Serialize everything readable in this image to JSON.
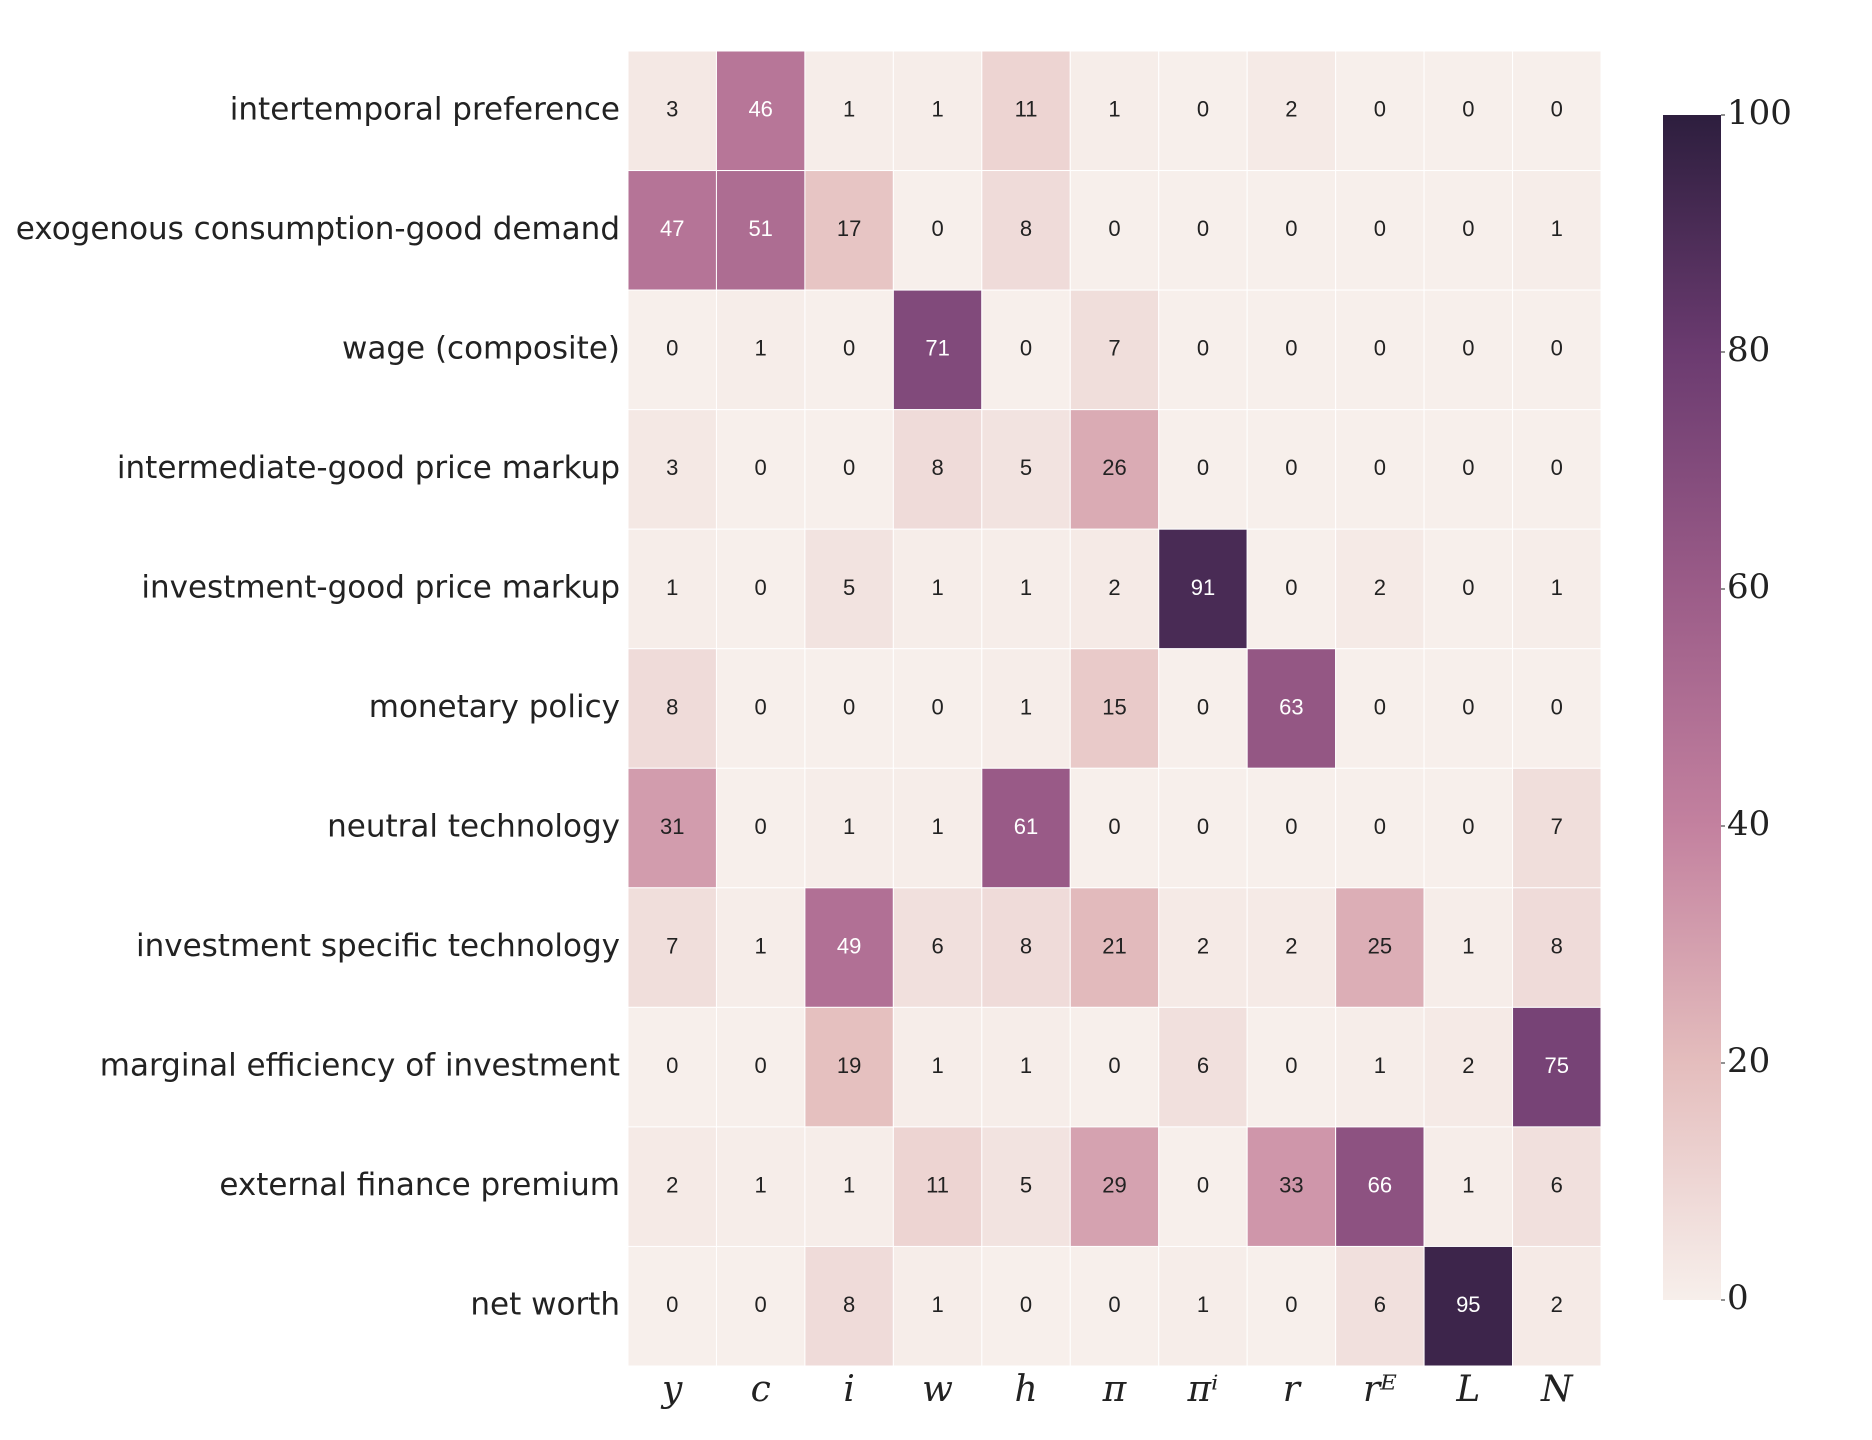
{
  "chart_data": {
    "type": "heatmap",
    "categories": [
      "y",
      "c",
      "i",
      "w",
      "h",
      "π",
      "πⁱ",
      "r",
      "rᴱ",
      "L",
      "N"
    ],
    "rows": [
      "intertemporal preference",
      "exogenous consumption-good demand",
      "wage (composite)",
      "intermediate-good price markup",
      "investment-good price markup",
      "monetary policy",
      "neutral technology",
      "investment specific technology",
      "marginal efficiency of investment",
      "external finance premium",
      "net worth"
    ],
    "values": [
      [
        3,
        46,
        1,
        1,
        11,
        1,
        0,
        2,
        0,
        0,
        0
      ],
      [
        47,
        51,
        17,
        0,
        8,
        0,
        0,
        0,
        0,
        0,
        1
      ],
      [
        0,
        1,
        0,
        71,
        0,
        7,
        0,
        0,
        0,
        0,
        0
      ],
      [
        3,
        0,
        0,
        8,
        5,
        26,
        0,
        0,
        0,
        0,
        0
      ],
      [
        1,
        0,
        5,
        1,
        1,
        2,
        91,
        0,
        2,
        0,
        1
      ],
      [
        8,
        0,
        0,
        0,
        1,
        15,
        0,
        63,
        0,
        0,
        0
      ],
      [
        31,
        0,
        1,
        1,
        61,
        0,
        0,
        0,
        0,
        0,
        7
      ],
      [
        7,
        1,
        49,
        6,
        8,
        21,
        2,
        2,
        25,
        1,
        8
      ],
      [
        0,
        0,
        19,
        1,
        1,
        0,
        6,
        0,
        1,
        2,
        75
      ],
      [
        2,
        1,
        1,
        11,
        5,
        29,
        0,
        33,
        66,
        1,
        6
      ],
      [
        0,
        0,
        8,
        1,
        0,
        0,
        1,
        0,
        6,
        95,
        2
      ]
    ],
    "zlim": [
      0,
      100
    ],
    "zticks": [
      0,
      20,
      40,
      60,
      80,
      100
    ],
    "colormap": [
      "#f7efeb",
      "#e4bdbd",
      "#c3819f",
      "#9b5c88",
      "#6b3b70",
      "#2d1e3e"
    ]
  }
}
